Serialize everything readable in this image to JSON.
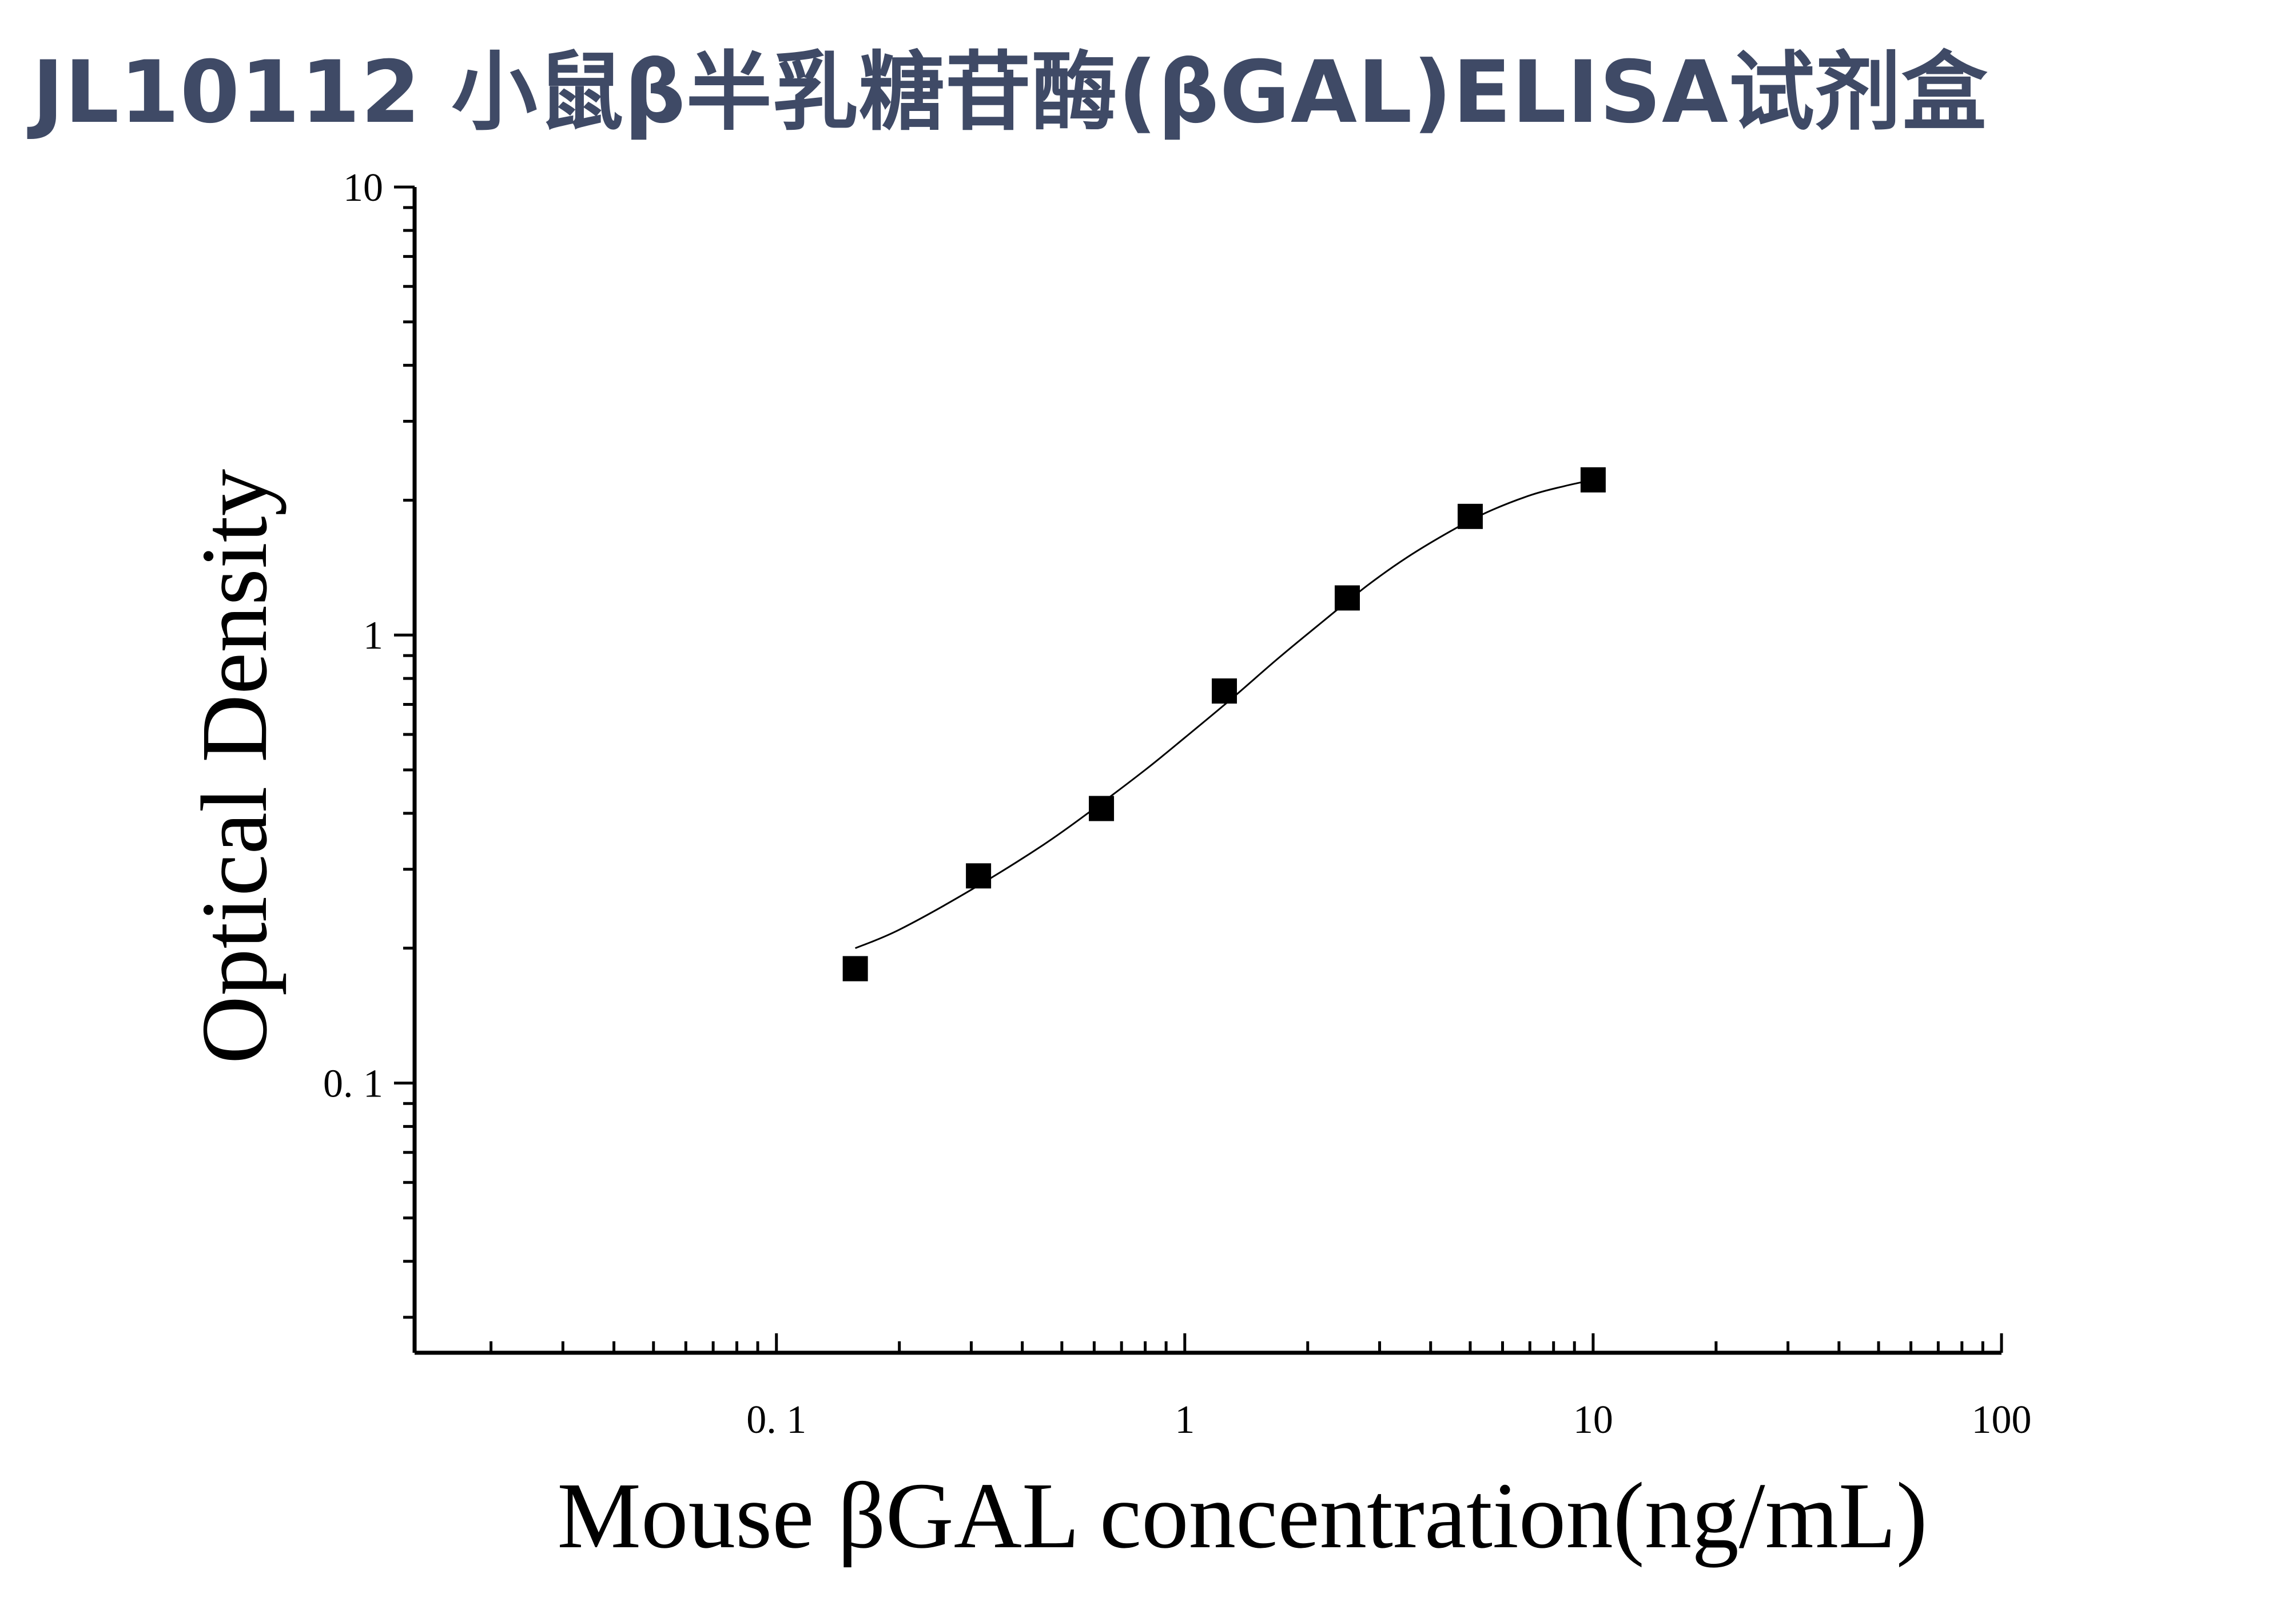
{
  "title": "JL10112 小鼠β半乳糖苷酶(βGAL)ELISA试剂盒",
  "chart_data": {
    "type": "scatter",
    "xlabel": "Mouse βGAL concentration(ng/mL)",
    "ylabel": "Optical Density",
    "xscale": "log",
    "yscale": "log",
    "xlim": [
      0.013,
      100
    ],
    "ylim": [
      0.025,
      10
    ],
    "x_ticks": [
      {
        "value": 0.1,
        "label": "0. 1"
      },
      {
        "value": 1,
        "label": "1"
      },
      {
        "value": 10,
        "label": "10"
      },
      {
        "value": 100,
        "label": "100"
      }
    ],
    "y_ticks": [
      {
        "value": 0.1,
        "label": "0. 1"
      },
      {
        "value": 1,
        "label": "1"
      },
      {
        "value": 10,
        "label": "10"
      }
    ],
    "grid": false,
    "series": [
      {
        "marker": "square",
        "color": "#000000",
        "x": [
          0.156,
          0.3125,
          0.625,
          1.25,
          2.5,
          5,
          10
        ],
        "y": [
          0.18,
          0.29,
          0.41,
          0.75,
          1.21,
          1.84,
          2.22
        ]
      }
    ],
    "fit_curve": {
      "type": "four-parameter logistic",
      "color": "#000000",
      "x": [
        0.156,
        0.2,
        0.3,
        0.45,
        0.6,
        0.8,
        1.0,
        1.3,
        1.7,
        2.2,
        2.8,
        3.5,
        4.5,
        5.5,
        7,
        8.5,
        10
      ],
      "y": [
        0.2,
        0.22,
        0.27,
        0.34,
        0.41,
        0.5,
        0.59,
        0.72,
        0.89,
        1.08,
        1.29,
        1.49,
        1.71,
        1.88,
        2.05,
        2.15,
        2.22
      ]
    }
  }
}
